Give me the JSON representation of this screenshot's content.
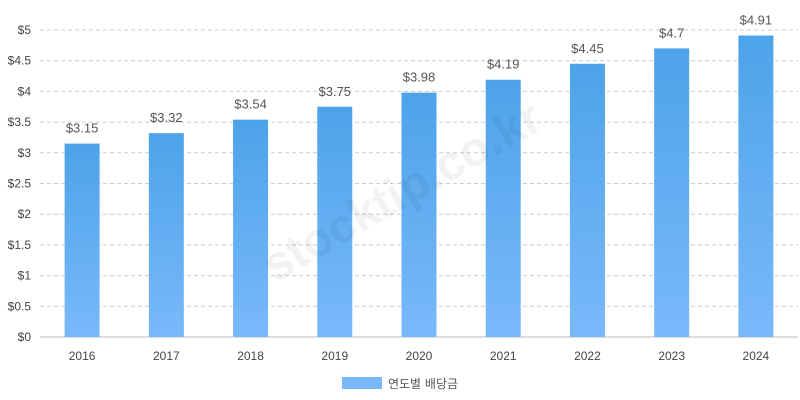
{
  "chart_data": {
    "type": "bar",
    "categories": [
      "2016",
      "2017",
      "2018",
      "2019",
      "2020",
      "2021",
      "2022",
      "2023",
      "2024"
    ],
    "series": [
      {
        "name": "연도별 배당금",
        "values": [
          3.15,
          3.32,
          3.54,
          3.75,
          3.98,
          4.19,
          4.45,
          4.7,
          4.91
        ],
        "data_labels": [
          "$3.15",
          "$3.32",
          "$3.54",
          "$3.75",
          "$3.98",
          "$4.19",
          "$4.45",
          "$4.7",
          "$4.91"
        ]
      }
    ],
    "title": "",
    "xlabel": "",
    "ylabel": "",
    "ylim": [
      0,
      5
    ],
    "yticks": [
      0,
      0.5,
      1,
      1.5,
      2,
      2.5,
      3,
      3.5,
      4,
      4.5,
      5
    ],
    "ytick_labels": [
      "$0",
      "$0.5",
      "$1",
      "$1.5",
      "$2",
      "$2.5",
      "$3",
      "$3.5",
      "$4",
      "$4.5",
      "$5"
    ],
    "grid": true,
    "legend_position": "bottom",
    "colors": {
      "bar_top": "#4da3e8",
      "bar_bottom": "#79b9fb",
      "grid": "#cccccc",
      "axis": "#bbbbbb"
    }
  },
  "legend": {
    "label": "연도별 배당금"
  },
  "watermark": "stocktip.co.kr"
}
